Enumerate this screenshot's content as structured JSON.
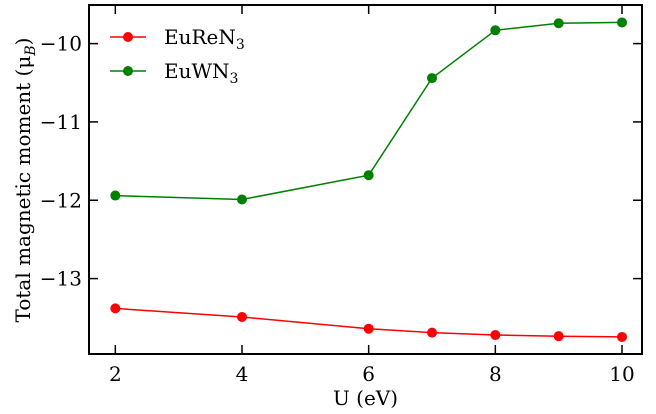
{
  "chart_data": {
    "type": "line",
    "xlabel": "U (eV)",
    "ylabel": "Total magnetic moment (μ",
    "ylabel_sub": "B",
    "ylabel_end": ")",
    "xlim": [
      1.6,
      10.3
    ],
    "ylim": [
      -13.95,
      -9.52
    ],
    "xticks": [
      2,
      4,
      6,
      8,
      10
    ],
    "xtick_labels": [
      "2",
      "4",
      "6",
      "8",
      "10"
    ],
    "yticks": [
      -13,
      -12,
      -11,
      -10
    ],
    "ytick_labels": [
      "−13",
      "−12",
      "−11",
      "−10"
    ],
    "grid": false,
    "legend_position": "top-left",
    "series": [
      {
        "name": "EuReN",
        "name_sub": "3",
        "color": "#ff0000",
        "x": [
          2,
          4,
          6,
          7,
          8,
          9,
          10
        ],
        "y": [
          -13.38,
          -13.49,
          -13.64,
          -13.69,
          -13.72,
          -13.735,
          -13.745
        ]
      },
      {
        "name": "EuWN",
        "name_sub": "3",
        "color": "#008000",
        "x": [
          2,
          4,
          6,
          7,
          8,
          9,
          10
        ],
        "y": [
          -11.94,
          -11.99,
          -11.68,
          -10.44,
          -9.83,
          -9.74,
          -9.73
        ]
      }
    ]
  }
}
